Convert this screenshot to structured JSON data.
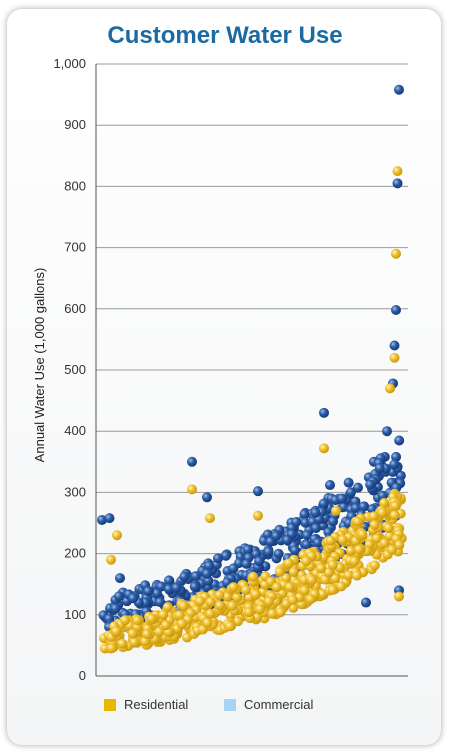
{
  "chart_data": {
    "type": "scatter",
    "title": "Customer Water Use",
    "ylabel": "Annual Water Use (1,000 gallons)",
    "xlabel": "",
    "ylim": [
      0,
      1000
    ],
    "yticks": [
      "0",
      "100",
      "200",
      "300",
      "400",
      "500",
      "600",
      "700",
      "800",
      "900",
      "1,000"
    ],
    "grid": "horizontal",
    "legend_position": "bottom",
    "series": [
      {
        "name": "Residential",
        "color": "#f2c230",
        "legend_color": "#e8b800",
        "n_points": 560,
        "baseline_start": 60,
        "baseline_end": 260,
        "spread": 70,
        "outliers": [
          [
            0.03,
            190
          ],
          [
            0.05,
            230
          ],
          [
            0.3,
            305
          ],
          [
            0.36,
            258
          ],
          [
            0.52,
            262
          ],
          [
            0.74,
            372
          ],
          [
            0.78,
            270
          ],
          [
            0.96,
            470
          ],
          [
            0.975,
            520
          ],
          [
            0.98,
            690
          ],
          [
            0.985,
            825
          ],
          [
            0.99,
            130
          ]
        ]
      },
      {
        "name": "Commercial",
        "color": "#2e5fa8",
        "legend_color": "#a6d4f2",
        "n_points": 420,
        "baseline_start": 100,
        "baseline_end": 330,
        "spread": 85,
        "outliers": [
          [
            0.0,
            255
          ],
          [
            0.025,
            258
          ],
          [
            0.06,
            160
          ],
          [
            0.3,
            350
          ],
          [
            0.35,
            292
          ],
          [
            0.52,
            302
          ],
          [
            0.74,
            430
          ],
          [
            0.76,
            312
          ],
          [
            0.8,
            290
          ],
          [
            0.95,
            400
          ],
          [
            0.97,
            478
          ],
          [
            0.975,
            540
          ],
          [
            0.98,
            598
          ],
          [
            0.985,
            805
          ],
          [
            0.99,
            958
          ],
          [
            0.99,
            140
          ],
          [
            0.6,
            115
          ],
          [
            0.88,
            120
          ]
        ]
      }
    ]
  }
}
